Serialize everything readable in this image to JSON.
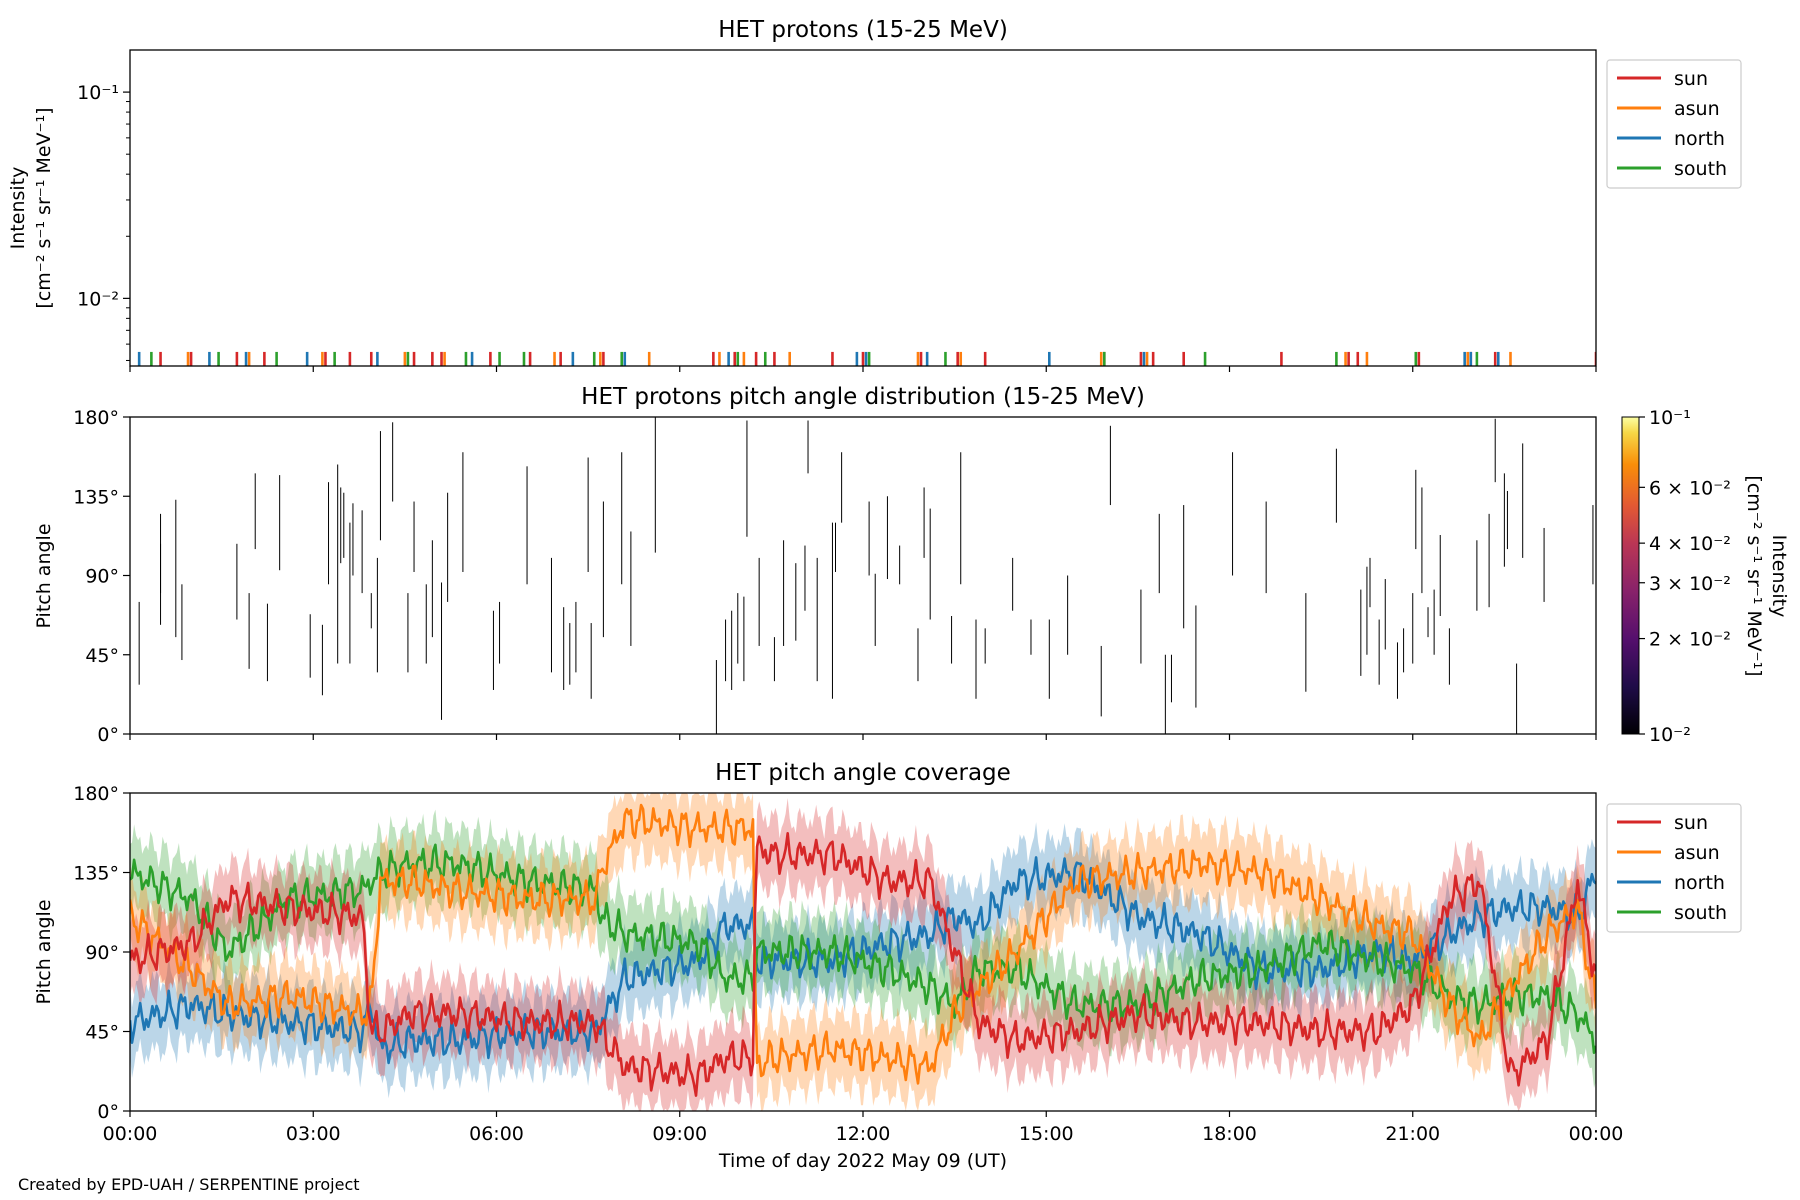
{
  "figure": {
    "credit": "Created by EPD-UAH / SERPENTINE project",
    "xlabel": "Time of day 2022 May 09 (UT)",
    "xtick_labels": [
      "00:00",
      "03:00",
      "06:00",
      "09:00",
      "12:00",
      "15:00",
      "18:00",
      "21:00",
      "00:00"
    ]
  },
  "colors": {
    "sun": "#d62728",
    "asun": "#ff7f0e",
    "north": "#1f77b4",
    "south": "#2ca02c"
  },
  "chart_data": [
    {
      "type": "line",
      "title": "HET protons (15-25 MeV)",
      "ylabel_line1": "Intensity",
      "ylabel_line2": "[cm⁻² s⁻¹ sr⁻¹ MeV⁻¹]",
      "yscale": "log",
      "ylim": [
        0.0047,
        0.16
      ],
      "ytick_labels": [
        "10⁻¹",
        "10⁻²"
      ],
      "ytick_values": [
        0.1,
        0.01
      ],
      "xlim_hours": [
        0,
        24
      ],
      "legend": [
        "sun",
        "asun",
        "north",
        "south"
      ],
      "legend_position": "outside-upper-right",
      "series": [
        {
          "name": "sun",
          "spike_hours": [
            0.5,
            1.0,
            1.75,
            2.2,
            3.2,
            3.6,
            3.95,
            4.65,
            4.95,
            5.1,
            5.9,
            6.55,
            7.05,
            7.75,
            9.55,
            9.9,
            10.25,
            10.55,
            11.5,
            12.0,
            12.95,
            13.55,
            14.0,
            15.95,
            16.55,
            16.75,
            17.25,
            18.85,
            19.95,
            20.1,
            21.1,
            21.95,
            22.35,
            24.0
          ]
        },
        {
          "name": "asun",
          "spike_hours": [
            0.95,
            1.95,
            3.15,
            4.5,
            5.15,
            6.95,
            7.7,
            8.5,
            9.65,
            10.05,
            10.8,
            12.9,
            13.6,
            15.9,
            16.65,
            19.9,
            20.25,
            21.9,
            22.6
          ]
        },
        {
          "name": "north",
          "spike_hours": [
            0.15,
            1.3,
            1.9,
            2.9,
            4.05,
            5.6,
            7.25,
            8.1,
            9.8,
            11.9,
            12.05,
            13.05,
            15.05,
            16.6,
            21.85,
            21.95,
            22.4
          ]
        },
        {
          "name": "south",
          "spike_hours": [
            0.35,
            1.45,
            2.4,
            3.35,
            4.55,
            5.5,
            6.05,
            6.45,
            7.6,
            8.05,
            9.95,
            10.4,
            12.1,
            13.35,
            15.95,
            17.6,
            19.75,
            21.05,
            22.05
          ]
        }
      ],
      "spike_value": 0.0055
    },
    {
      "type": "heatmap",
      "title": "HET protons pitch angle distribution (15-25 MeV)",
      "ylabel": "Pitch angle",
      "ylim": [
        0,
        180
      ],
      "ytick_labels": [
        "180°",
        "135°",
        "90°",
        "45°",
        "0°"
      ],
      "ytick_values": [
        180,
        135,
        90,
        45,
        0
      ],
      "xlim_hours": [
        0,
        24
      ],
      "colorbar": {
        "label_line1": "Intensity",
        "label_line2": "[cm⁻² s⁻¹ sr⁻¹ MeV⁻¹]",
        "scale": "log",
        "range": [
          0.01,
          0.1
        ],
        "colormap": "inferno",
        "tick_labels": [
          "10⁻¹",
          "6 × 10⁻²",
          "4 × 10⁻²",
          "3 × 10⁻²",
          "2 × 10⁻²",
          "10⁻²"
        ],
        "tick_values": [
          0.1,
          0.06,
          0.04,
          0.03,
          0.02,
          0.01
        ]
      },
      "segments": [
        [
          0.15,
          28,
          75
        ],
        [
          0.5,
          62,
          108
        ],
        [
          0.5,
          80,
          125
        ],
        [
          0.75,
          55,
          133
        ],
        [
          0.85,
          42,
          85
        ],
        [
          1.75,
          65,
          108
        ],
        [
          1.95,
          37,
          80
        ],
        [
          2.05,
          105,
          148
        ],
        [
          2.25,
          30,
          74
        ],
        [
          2.45,
          93,
          147
        ],
        [
          2.95,
          32,
          68
        ],
        [
          3.15,
          22,
          62
        ],
        [
          3.25,
          85,
          143
        ],
        [
          3.4,
          40,
          153
        ],
        [
          3.45,
          97,
          140
        ],
        [
          3.5,
          100,
          137
        ],
        [
          3.6,
          40,
          120
        ],
        [
          3.65,
          90,
          131
        ],
        [
          3.8,
          80,
          127
        ],
        [
          3.95,
          60,
          80
        ],
        [
          4.05,
          35,
          100
        ],
        [
          4.1,
          110,
          172
        ],
        [
          4.3,
          132,
          177
        ],
        [
          4.55,
          35,
          80
        ],
        [
          4.65,
          92,
          132
        ],
        [
          4.85,
          40,
          85
        ],
        [
          4.95,
          55,
          110
        ],
        [
          5.1,
          8,
          86
        ],
        [
          5.2,
          75,
          137
        ],
        [
          5.45,
          92,
          160
        ],
        [
          5.95,
          25,
          70
        ],
        [
          6.05,
          40,
          75
        ],
        [
          6.5,
          85,
          152
        ],
        [
          6.9,
          35,
          100
        ],
        [
          7.1,
          25,
          72
        ],
        [
          7.2,
          28,
          63
        ],
        [
          7.3,
          35,
          75
        ],
        [
          7.5,
          92,
          157
        ],
        [
          7.55,
          20,
          63
        ],
        [
          7.75,
          55,
          132
        ],
        [
          8.05,
          85,
          160
        ],
        [
          8.2,
          50,
          115
        ],
        [
          8.6,
          103,
          180
        ],
        [
          9.6,
          0,
          42
        ],
        [
          9.75,
          30,
          65
        ],
        [
          9.85,
          25,
          70
        ],
        [
          9.95,
          40,
          80
        ],
        [
          10.05,
          30,
          78
        ],
        [
          10.1,
          112,
          178
        ],
        [
          10.3,
          50,
          100
        ],
        [
          10.55,
          30,
          55
        ],
        [
          10.7,
          50,
          110
        ],
        [
          10.9,
          53,
          97
        ],
        [
          11.05,
          70,
          107
        ],
        [
          11.1,
          148,
          178
        ],
        [
          11.25,
          30,
          100
        ],
        [
          11.5,
          20,
          120
        ],
        [
          11.55,
          92,
          120
        ],
        [
          11.65,
          120,
          160
        ],
        [
          12.1,
          90,
          132
        ],
        [
          12.2,
          50,
          91
        ],
        [
          12.4,
          88,
          135
        ],
        [
          12.6,
          85,
          107
        ],
        [
          12.9,
          30,
          60
        ],
        [
          13.0,
          100,
          140
        ],
        [
          13.1,
          65,
          128
        ],
        [
          13.45,
          40,
          67
        ],
        [
          13.6,
          85,
          160
        ],
        [
          13.85,
          20,
          65
        ],
        [
          14.0,
          40,
          60
        ],
        [
          14.45,
          70,
          100
        ],
        [
          14.75,
          45,
          65
        ],
        [
          15.05,
          20,
          65
        ],
        [
          15.35,
          45,
          90
        ],
        [
          15.9,
          10,
          50
        ],
        [
          16.05,
          130,
          175
        ],
        [
          16.55,
          40,
          82
        ],
        [
          16.85,
          80,
          125
        ],
        [
          16.95,
          0,
          45
        ],
        [
          17.05,
          18,
          45
        ],
        [
          17.25,
          60,
          130
        ],
        [
          17.45,
          15,
          73
        ],
        [
          18.05,
          90,
          160
        ],
        [
          18.6,
          80,
          132
        ],
        [
          19.25,
          24,
          80
        ],
        [
          19.75,
          120,
          162
        ],
        [
          20.15,
          33,
          82
        ],
        [
          20.25,
          45,
          95
        ],
        [
          20.3,
          72,
          100
        ],
        [
          20.45,
          28,
          65
        ],
        [
          20.55,
          48,
          88
        ],
        [
          20.75,
          20,
          52
        ],
        [
          20.85,
          35,
          60
        ],
        [
          21.0,
          40,
          80
        ],
        [
          21.05,
          105,
          150
        ],
        [
          21.15,
          80,
          140
        ],
        [
          21.25,
          55,
          72
        ],
        [
          21.35,
          45,
          82
        ],
        [
          21.45,
          67,
          113
        ],
        [
          21.6,
          28,
          60
        ],
        [
          22.05,
          70,
          110
        ],
        [
          22.25,
          72,
          125
        ],
        [
          22.35,
          143,
          179
        ],
        [
          22.5,
          95,
          148
        ],
        [
          22.55,
          105,
          138
        ],
        [
          22.7,
          0,
          40
        ],
        [
          22.8,
          100,
          165
        ],
        [
          23.15,
          75,
          117
        ],
        [
          23.95,
          85,
          130
        ]
      ]
    },
    {
      "type": "area",
      "title": "HET pitch angle coverage",
      "ylabel": "Pitch angle",
      "ylim": [
        0,
        180
      ],
      "ytick_labels": [
        "180°",
        "135°",
        "90°",
        "45°",
        "0°"
      ],
      "ytick_values": [
        180,
        135,
        90,
        45,
        0
      ],
      "xlim_hours": [
        0,
        24
      ],
      "legend": [
        "sun",
        "asun",
        "north",
        "south"
      ],
      "legend_position": "outside-upper-right",
      "band_halfwidth_deg": 20,
      "x_hours": [
        0,
        1.0,
        1.6,
        2.6,
        3.8,
        3.95,
        4.1,
        4.6,
        5.3,
        6.5,
        7.65,
        7.7,
        8.1,
        9.3,
        9.75,
        10.2,
        10.25,
        10.5,
        11.5,
        12.4,
        13.1,
        13.5,
        13.9,
        14.5,
        15.5,
        16.5,
        17.5,
        18.5,
        19.5,
        20.4,
        21.0,
        21.6,
        22.1,
        22.6,
        23.2,
        23.7,
        24.0
      ],
      "series": [
        {
          "name": "sun",
          "values": [
            85,
            95,
            120,
            115,
            110,
            45,
            45,
            55,
            55,
            50,
            50,
            45,
            25,
            20,
            30,
            30,
            150,
            145,
            145,
            130,
            130,
            90,
            50,
            40,
            45,
            55,
            50,
            50,
            45,
            45,
            60,
            120,
            130,
            20,
            40,
            130,
            75
          ]
        },
        {
          "name": "asun",
          "values": [
            110,
            80,
            60,
            65,
            55,
            60,
            130,
            130,
            125,
            120,
            120,
            135,
            165,
            160,
            160,
            160,
            25,
            30,
            35,
            30,
            25,
            55,
            70,
            90,
            130,
            135,
            140,
            135,
            120,
            105,
            100,
            60,
            40,
            70,
            100,
            115,
            60
          ]
        },
        {
          "name": "north",
          "values": [
            50,
            60,
            55,
            50,
            45,
            60,
            35,
            40,
            40,
            45,
            45,
            50,
            75,
            85,
            105,
            105,
            85,
            85,
            85,
            95,
            100,
            110,
            105,
            130,
            135,
            110,
            100,
            80,
            80,
            90,
            85,
            100,
            110,
            115,
            115,
            110,
            135
          ]
        },
        {
          "name": "south",
          "values": [
            135,
            120,
            90,
            120,
            125,
            130,
            135,
            140,
            140,
            130,
            125,
            110,
            100,
            95,
            75,
            75,
            90,
            90,
            90,
            80,
            70,
            60,
            80,
            80,
            60,
            60,
            75,
            80,
            95,
            85,
            80,
            65,
            60,
            65,
            65,
            55,
            40
          ]
        }
      ]
    }
  ]
}
